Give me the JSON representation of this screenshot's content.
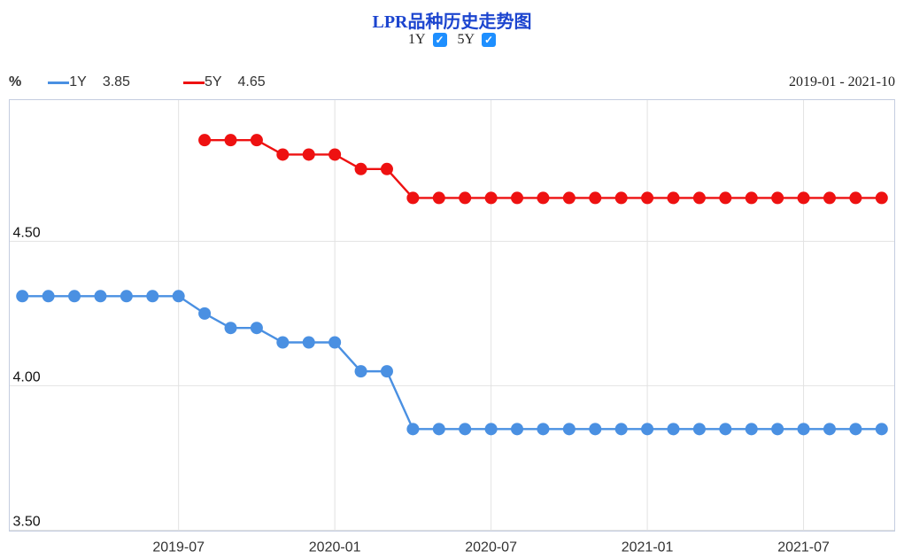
{
  "header": {
    "title": "LPR品种历史走势图",
    "title_color": "#1c45cf",
    "checkbox_color": "#1e8fff",
    "toggles": [
      {
        "label": "1Y",
        "checked": true
      },
      {
        "label": "5Y",
        "checked": true
      }
    ]
  },
  "icons": {
    "check": "✓"
  },
  "legend": {
    "unit": "%",
    "items": [
      {
        "name": "1Y",
        "value": "3.85",
        "color": "#4a90e2"
      },
      {
        "name": "5Y",
        "value": "4.65",
        "color": "#ee1111"
      }
    ],
    "date_range": "2019-01 - 2021-10"
  },
  "chart_data": {
    "type": "line",
    "title": "LPR品种历史走势图",
    "x": [
      "2019-01",
      "2019-02",
      "2019-03",
      "2019-04",
      "2019-05",
      "2019-06",
      "2019-07",
      "2019-08",
      "2019-09",
      "2019-10",
      "2019-11",
      "2019-12",
      "2020-01",
      "2020-02",
      "2020-03",
      "2020-04",
      "2020-05",
      "2020-06",
      "2020-07",
      "2020-08",
      "2020-09",
      "2020-10",
      "2020-11",
      "2020-12",
      "2021-01",
      "2021-02",
      "2021-03",
      "2021-04",
      "2021-05",
      "2021-06",
      "2021-07",
      "2021-08",
      "2021-09",
      "2021-10"
    ],
    "series": [
      {
        "name": "1Y",
        "color": "#4a90e2",
        "start_index": 0,
        "values": [
          4.31,
          4.31,
          4.31,
          4.31,
          4.31,
          4.31,
          4.31,
          4.25,
          4.2,
          4.2,
          4.15,
          4.15,
          4.15,
          4.05,
          4.05,
          3.85,
          3.85,
          3.85,
          3.85,
          3.85,
          3.85,
          3.85,
          3.85,
          3.85,
          3.85,
          3.85,
          3.85,
          3.85,
          3.85,
          3.85,
          3.85,
          3.85,
          3.85,
          3.85
        ]
      },
      {
        "name": "5Y",
        "color": "#ee1111",
        "start_index": 7,
        "values": [
          4.85,
          4.85,
          4.85,
          4.8,
          4.8,
          4.8,
          4.75,
          4.75,
          4.65,
          4.65,
          4.65,
          4.65,
          4.65,
          4.65,
          4.65,
          4.65,
          4.65,
          4.65,
          4.65,
          4.65,
          4.65,
          4.65,
          4.65,
          4.65,
          4.65,
          4.65,
          4.65
        ]
      }
    ],
    "ylim": [
      3.497,
      4.99
    ],
    "yticks": [
      4.5,
      4.0,
      3.5
    ],
    "ytick_labels": [
      "4.50",
      "4.00",
      "3.50"
    ],
    "xtick_indices": [
      6,
      12,
      18,
      24,
      30
    ],
    "xtick_labels": [
      "2019-07",
      "2020-01",
      "2020-07",
      "2021-01",
      "2021-07"
    ],
    "ylabel": "%",
    "grid": true,
    "legend_position": "top-left",
    "marker_radius": 7,
    "line_width": 2.4,
    "grid_color": "#e2e2e2",
    "border_color": "#c4cde0",
    "ytick_text_color": "#111",
    "xtick_text_color": "#333"
  }
}
